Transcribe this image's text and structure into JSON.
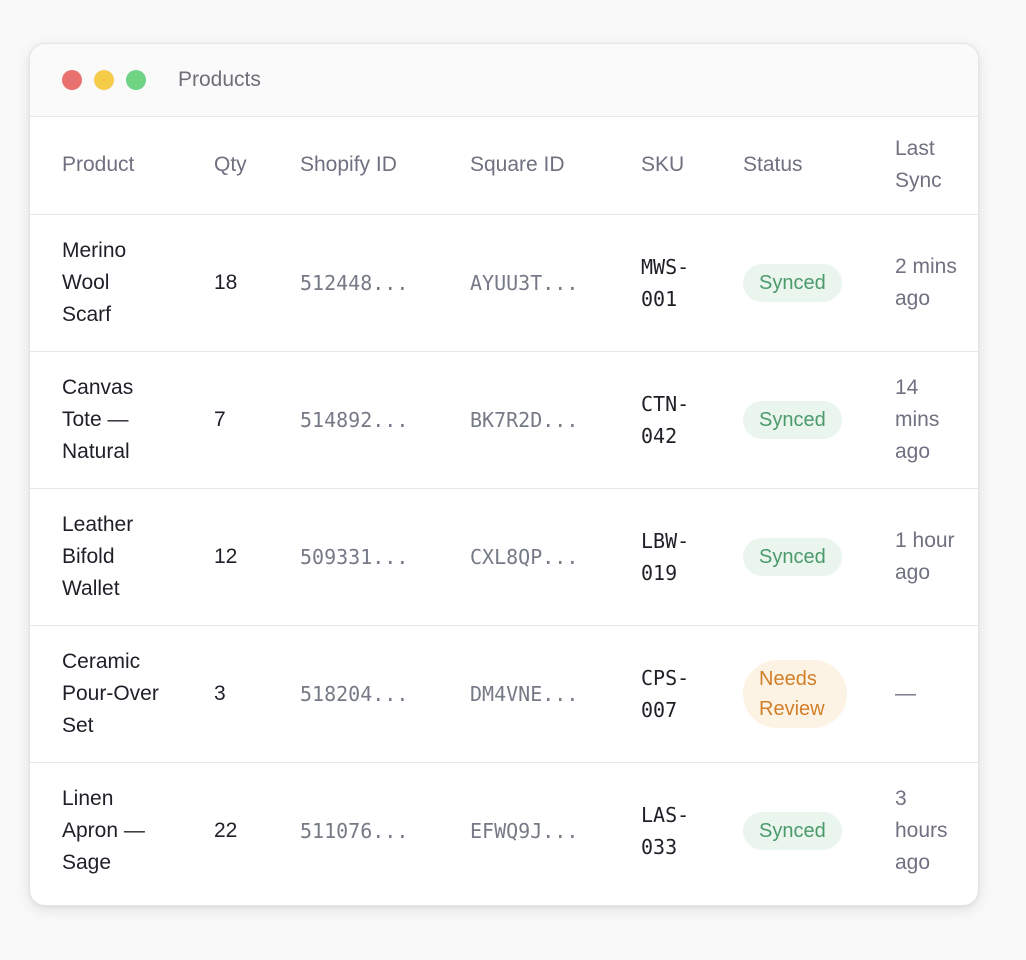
{
  "window": {
    "title": "Products"
  },
  "table": {
    "headers": [
      "Product",
      "Qty",
      "Shopify ID",
      "Square ID",
      "SKU",
      "Status",
      "Last Sync"
    ],
    "rows": [
      {
        "product": "Merino Wool Scarf",
        "qty": "18",
        "shopify_id": "512448...",
        "square_id": "AYUU3T...",
        "sku": "MWS-001",
        "status": "Synced",
        "last_sync": "2 mins ago"
      },
      {
        "product": "Canvas Tote — Natural",
        "qty": "7",
        "shopify_id": "514892...",
        "square_id": "BK7R2D...",
        "sku": "CTN-042",
        "status": "Synced",
        "last_sync": "14 mins ago"
      },
      {
        "product": "Leather Bifold Wallet",
        "qty": "12",
        "shopify_id": "509331...",
        "square_id": "CXL8QP...",
        "sku": "LBW-019",
        "status": "Synced",
        "last_sync": "1 hour ago"
      },
      {
        "product": "Ceramic Pour-Over Set",
        "qty": "3",
        "shopify_id": "518204...",
        "square_id": "DM4VNE...",
        "sku": "CPS-007",
        "status": "Needs Review",
        "last_sync": "—"
      },
      {
        "product": "Linen Apron — Sage",
        "qty": "22",
        "shopify_id": "511076...",
        "square_id": "EFWQ9J...",
        "sku": "LAS-033",
        "status": "Synced",
        "last_sync": "3 hours ago"
      }
    ]
  },
  "colors": {
    "synced_bg": "#eaf5ee",
    "synced_text": "#4b9a6b",
    "review_bg": "#fdf3e4",
    "review_text": "#d07f2a",
    "traffic_red": "#e8716f",
    "traffic_yellow": "#f5cc4a",
    "traffic_green": "#6fd383"
  }
}
